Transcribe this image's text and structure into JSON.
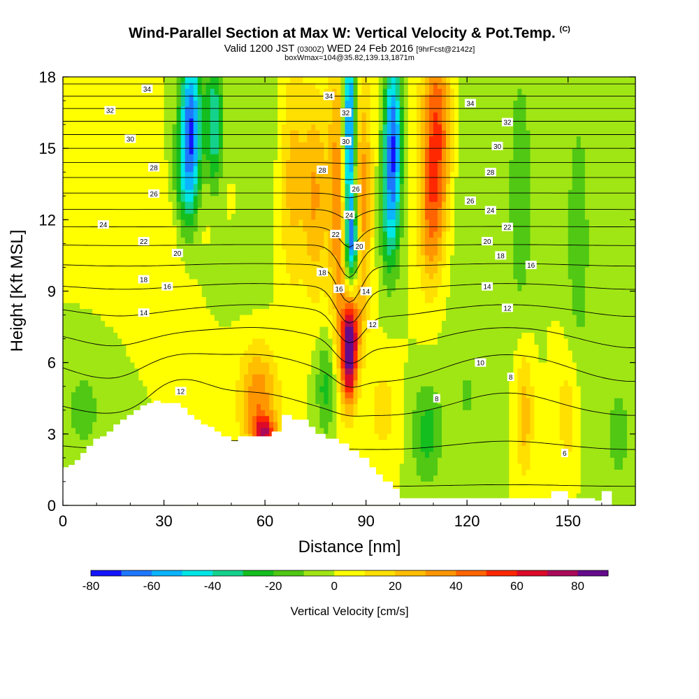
{
  "title": {
    "main": "Wind-Parallel Section at Max W: Vertical Velocity & Pot.Temp.",
    "units": "(C)",
    "valid_prefix": "Valid 1200 JST",
    "valid_z": "(0300Z)",
    "valid_date": "WED 24 Feb 2016",
    "fcst": "[9hrFcst@2142z]",
    "box": "boxWmax=104@35.82,139.13,1871m"
  },
  "chart_data": {
    "type": "heatmap",
    "xlabel": "Distance [nm]",
    "ylabel": "Height [Kft MSL]",
    "xlim": [
      0,
      170
    ],
    "ylim": [
      0,
      18
    ],
    "xticks": [
      0,
      30,
      60,
      90,
      120,
      150
    ],
    "yticks": [
      0,
      3,
      6,
      9,
      12,
      15,
      18
    ],
    "colorbar": {
      "label": "Vertical Velocity [cm/s]",
      "ticks": [
        -80,
        -60,
        -40,
        -20,
        0,
        20,
        40,
        60,
        80
      ],
      "levels": [
        -80,
        -70,
        -60,
        -50,
        -40,
        -30,
        -20,
        -10,
        0,
        10,
        20,
        30,
        40,
        50,
        60,
        70,
        80,
        90
      ],
      "colors": [
        "#1414ff",
        "#1e78ff",
        "#0ab4ff",
        "#00e6e6",
        "#14d28c",
        "#14be1e",
        "#50c814",
        "#a0e614",
        "#ffff00",
        "#ffe000",
        "#ffbe00",
        "#ff9600",
        "#ff6400",
        "#ff2800",
        "#dc0a28",
        "#aa0a5a",
        "#640a8c"
      ]
    },
    "terrain_profile": {
      "x": [
        0,
        1.7,
        1.7,
        3.5,
        3.5,
        5.2,
        5.2,
        7,
        7,
        9,
        9,
        11,
        11,
        13,
        13,
        15,
        15,
        17,
        17,
        19,
        19,
        21,
        21,
        23,
        23,
        25,
        25,
        27,
        27,
        29,
        29,
        35,
        35,
        37,
        37,
        39,
        39,
        41,
        41,
        43,
        43,
        45,
        45,
        47,
        47,
        50,
        50,
        52,
        52,
        62,
        62,
        65,
        65,
        68,
        68,
        73,
        73,
        75,
        75,
        78,
        78,
        82,
        82,
        85,
        85,
        88,
        88,
        91,
        91,
        93,
        93,
        95,
        95,
        98,
        98,
        100,
        100,
        145,
        145,
        150,
        150,
        158,
        158,
        160,
        160,
        163,
        163,
        170
      ],
      "y": [
        1.6,
        1.6,
        1.7,
        1.7,
        1.9,
        1.9,
        2.2,
        2.2,
        2.5,
        2.5,
        2.8,
        2.8,
        2.9,
        2.9,
        3.1,
        3.1,
        3.4,
        3.4,
        3.6,
        3.6,
        3.8,
        3.8,
        4.0,
        4.0,
        4.2,
        4.2,
        4.3,
        4.3,
        4.4,
        4.4,
        4.3,
        4.3,
        4.1,
        4.1,
        3.8,
        3.8,
        3.6,
        3.6,
        3.4,
        3.4,
        3.3,
        3.3,
        3.1,
        3.1,
        2.9,
        2.9,
        2.7,
        2.7,
        2.9,
        2.9,
        3.1,
        3.1,
        3.8,
        3.8,
        3.6,
        3.6,
        3.3,
        3.3,
        3.0,
        3.0,
        2.8,
        2.8,
        2.6,
        2.6,
        2.3,
        2.3,
        2.0,
        2.0,
        1.6,
        1.6,
        1.3,
        1.3,
        1.0,
        1.0,
        0.7,
        0.7,
        0.3,
        0.3,
        0.6,
        0.6,
        0.3,
        0.3,
        0.2,
        0.2,
        0.6,
        0.6,
        0.0,
        0.0
      ]
    },
    "w_features": [
      {
        "x": 85,
        "y": 6.3,
        "sx": 1.6,
        "sy": 1.5,
        "v": 80
      },
      {
        "x": 86,
        "y": 7.5,
        "sx": 2.2,
        "sy": 1.2,
        "v": 25
      },
      {
        "x": 85,
        "y": 15.5,
        "sx": 1.4,
        "sy": 3.5,
        "v": -80
      },
      {
        "x": 86,
        "y": 11,
        "sx": 1.3,
        "sy": 1.2,
        "v": -50
      },
      {
        "x": 82,
        "y": 13,
        "sx": 2.2,
        "sy": 4.5,
        "v": 40
      },
      {
        "x": 89,
        "y": 13,
        "sx": 2.0,
        "sy": 3.5,
        "v": 35
      },
      {
        "x": 98,
        "y": 15.5,
        "sx": 1.8,
        "sy": 2.5,
        "v": -65
      },
      {
        "x": 97,
        "y": 12,
        "sx": 2.0,
        "sy": 2.0,
        "v": -30
      },
      {
        "x": 111,
        "y": 15.5,
        "sx": 3.2,
        "sy": 3.0,
        "v": 55
      },
      {
        "x": 109,
        "y": 11.5,
        "sx": 2.5,
        "sy": 2.0,
        "v": 25
      },
      {
        "x": 38,
        "y": 16,
        "sx": 2.2,
        "sy": 2.5,
        "v": -65
      },
      {
        "x": 36,
        "y": 13.5,
        "sx": 2.5,
        "sy": 1.8,
        "v": -25
      },
      {
        "x": 45,
        "y": 16,
        "sx": 1.8,
        "sy": 2.0,
        "v": -40
      },
      {
        "x": 68,
        "y": 14,
        "sx": 3.0,
        "sy": 3.5,
        "v": 25
      },
      {
        "x": 75,
        "y": 13,
        "sx": 2.5,
        "sy": 3.0,
        "v": 30
      },
      {
        "x": 32,
        "y": 11,
        "sx": 12,
        "sy": 2.0,
        "v": 10
      },
      {
        "x": 58,
        "y": 4.5,
        "sx": 4.0,
        "sy": 1.5,
        "v": 38
      },
      {
        "x": 60,
        "y": 3.0,
        "sx": 2.5,
        "sy": 0.5,
        "v": 55
      },
      {
        "x": 6,
        "y": 4.0,
        "sx": 6.0,
        "sy": 2.0,
        "v": -12
      },
      {
        "x": 50,
        "y": 10,
        "sx": 8,
        "sy": 1.2,
        "v": -10
      },
      {
        "x": 60,
        "y": 16,
        "sx": 5,
        "sy": 2.5,
        "v": -10
      },
      {
        "x": 136,
        "y": 13,
        "sx": 3,
        "sy": 5,
        "v": -15
      },
      {
        "x": 153,
        "y": 11,
        "sx": 3,
        "sy": 5,
        "v": -15
      },
      {
        "x": 120,
        "y": 14,
        "sx": 6,
        "sy": 4,
        "v": -10
      },
      {
        "x": 78,
        "y": 5.0,
        "sx": 2.0,
        "sy": 1.5,
        "v": -25
      },
      {
        "x": 95,
        "y": 4.0,
        "sx": 3.0,
        "sy": 1.5,
        "v": 15
      },
      {
        "x": 108,
        "y": 3.0,
        "sx": 3.0,
        "sy": 1.5,
        "v": -25
      },
      {
        "x": 120,
        "y": 4.5,
        "sx": 5,
        "sy": 2.0,
        "v": -10
      },
      {
        "x": 137,
        "y": 4.0,
        "sx": 2.0,
        "sy": 2.0,
        "v": 28
      },
      {
        "x": 150,
        "y": 4.0,
        "sx": 2.5,
        "sy": 2.0,
        "v": 18
      },
      {
        "x": 165,
        "y": 3.0,
        "sx": 4,
        "sy": 2.5,
        "v": -12
      },
      {
        "x": 10,
        "y": 14,
        "sx": 8,
        "sy": 3,
        "v": 5
      }
    ],
    "theta_contour_levels": [
      4,
      6,
      8,
      10,
      12,
      14,
      16,
      18,
      20,
      22,
      24,
      26,
      28,
      30,
      32,
      34
    ],
    "theta_labels": [
      {
        "x": 25,
        "y": 17.5,
        "text": "34"
      },
      {
        "x": 14,
        "y": 16.6,
        "text": "32"
      },
      {
        "x": 20,
        "y": 15.4,
        "text": "30"
      },
      {
        "x": 27,
        "y": 14.2,
        "text": "28"
      },
      {
        "x": 27,
        "y": 13.1,
        "text": "26"
      },
      {
        "x": 12,
        "y": 11.8,
        "text": "24"
      },
      {
        "x": 24,
        "y": 11.1,
        "text": "22"
      },
      {
        "x": 34,
        "y": 10.6,
        "text": "20"
      },
      {
        "x": 24,
        "y": 9.5,
        "text": "18"
      },
      {
        "x": 31,
        "y": 9.2,
        "text": "16"
      },
      {
        "x": 24,
        "y": 8.1,
        "text": "14"
      },
      {
        "x": 35,
        "y": 4.8,
        "text": "12"
      },
      {
        "x": 79,
        "y": 17.2,
        "text": "34"
      },
      {
        "x": 84,
        "y": 16.5,
        "text": "32"
      },
      {
        "x": 84,
        "y": 15.3,
        "text": "30"
      },
      {
        "x": 77,
        "y": 14.1,
        "text": "28"
      },
      {
        "x": 87,
        "y": 13.3,
        "text": "26"
      },
      {
        "x": 85,
        "y": 12.2,
        "text": "24"
      },
      {
        "x": 81,
        "y": 11.4,
        "text": "22"
      },
      {
        "x": 88,
        "y": 10.9,
        "text": "20"
      },
      {
        "x": 77,
        "y": 9.8,
        "text": "18"
      },
      {
        "x": 82,
        "y": 9.1,
        "text": "16"
      },
      {
        "x": 90,
        "y": 9.0,
        "text": "14"
      },
      {
        "x": 92,
        "y": 7.6,
        "text": "12"
      },
      {
        "x": 121,
        "y": 16.9,
        "text": "34"
      },
      {
        "x": 132,
        "y": 16.1,
        "text": "32"
      },
      {
        "x": 129,
        "y": 15.1,
        "text": "30"
      },
      {
        "x": 127,
        "y": 14.0,
        "text": "28"
      },
      {
        "x": 121,
        "y": 12.8,
        "text": "26"
      },
      {
        "x": 127,
        "y": 12.4,
        "text": "24"
      },
      {
        "x": 132,
        "y": 11.7,
        "text": "22"
      },
      {
        "x": 126,
        "y": 11.1,
        "text": "20"
      },
      {
        "x": 130,
        "y": 10.5,
        "text": "18"
      },
      {
        "x": 139,
        "y": 10.1,
        "text": "16"
      },
      {
        "x": 126,
        "y": 9.2,
        "text": "14"
      },
      {
        "x": 132,
        "y": 8.3,
        "text": "12"
      },
      {
        "x": 124,
        "y": 6.0,
        "text": "10"
      },
      {
        "x": 133,
        "y": 5.4,
        "text": "8"
      },
      {
        "x": 111,
        "y": 4.5,
        "text": "8"
      },
      {
        "x": 149,
        "y": 2.2,
        "text": "6"
      }
    ]
  }
}
